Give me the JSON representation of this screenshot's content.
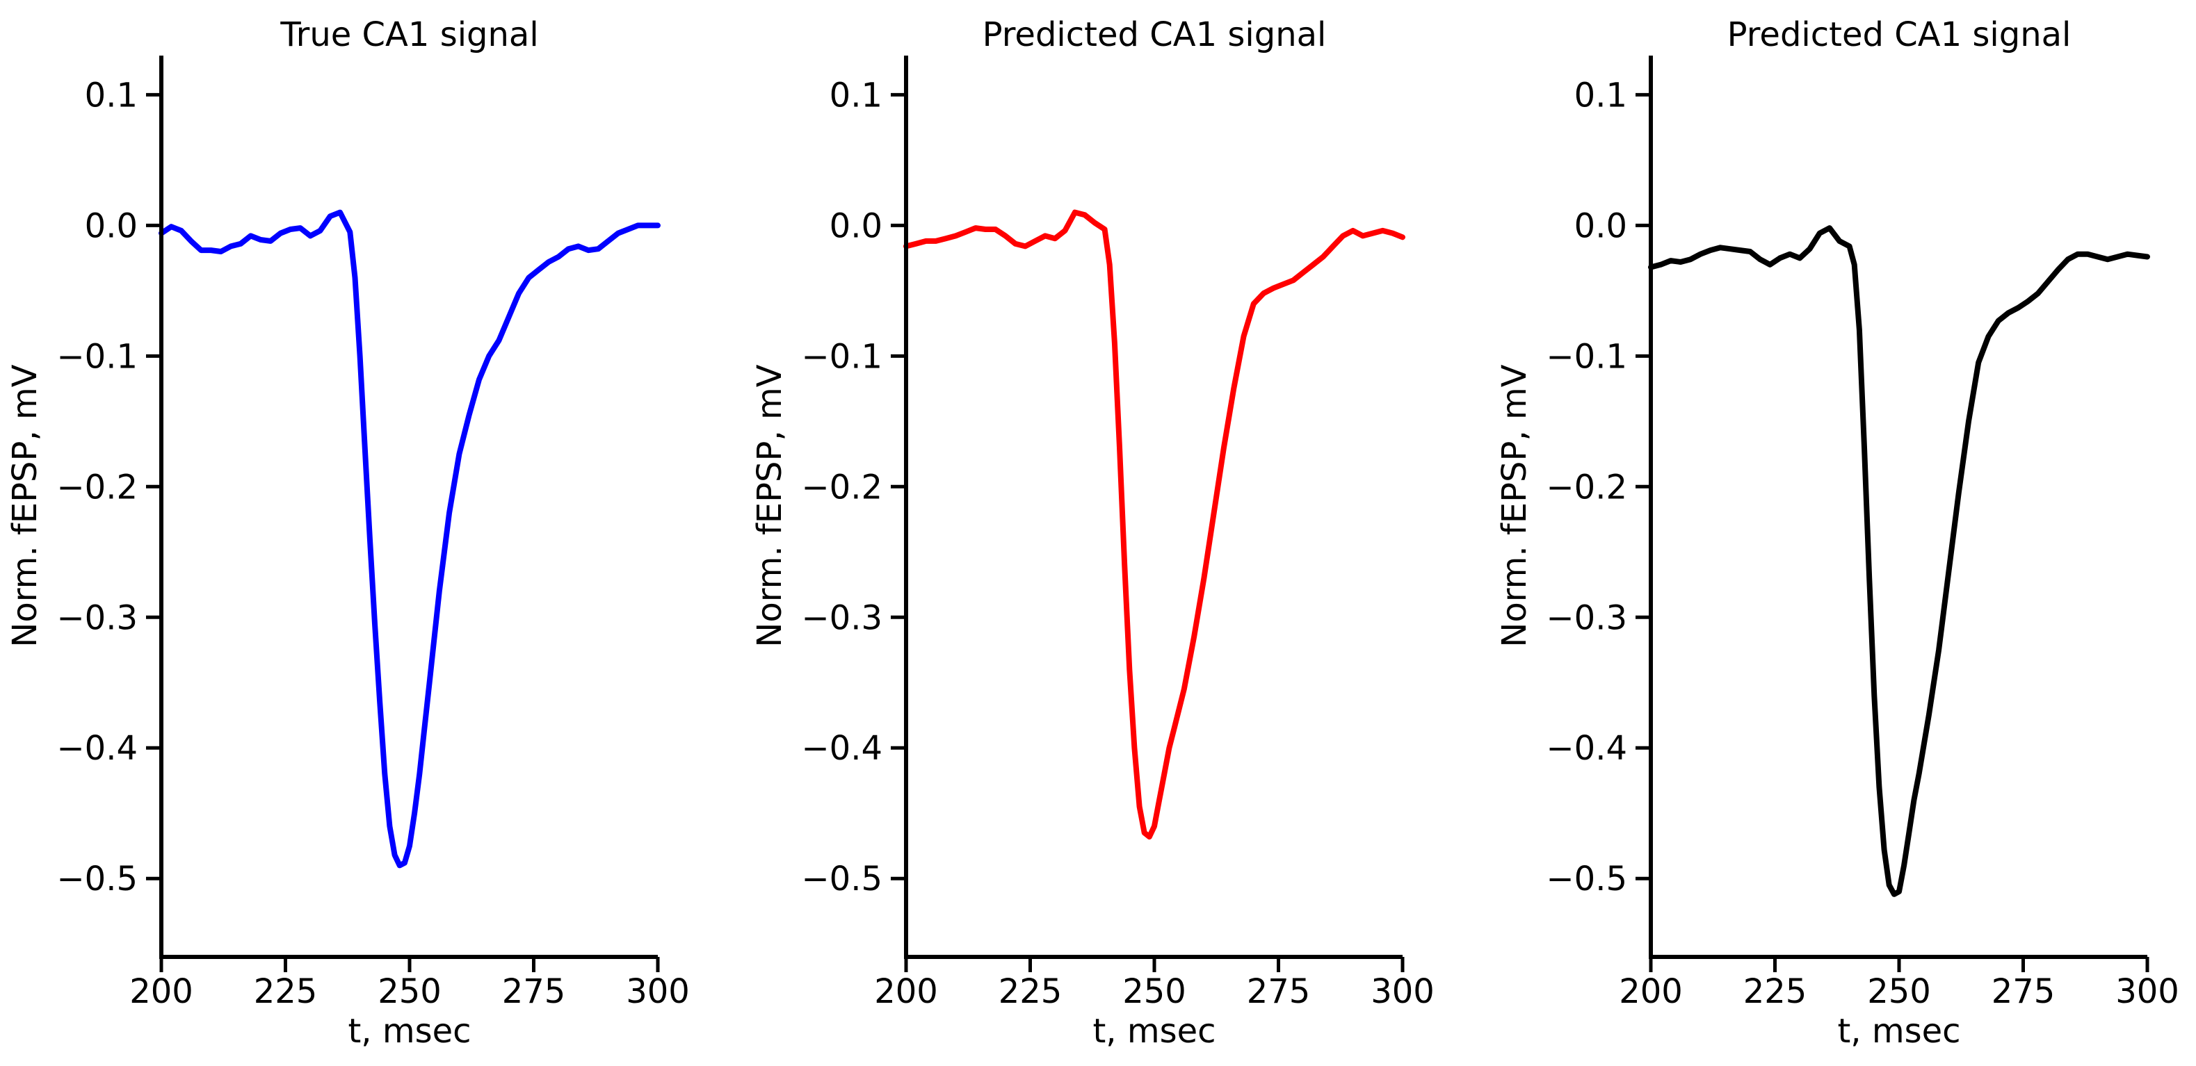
{
  "chart_data": [
    {
      "type": "line",
      "title": "True CA1 signal",
      "xlabel": "t, msec",
      "ylabel": "Norm. fEPSP, mV",
      "xlim": [
        200,
        300
      ],
      "ylim": [
        -0.56,
        0.13
      ],
      "xticks": [
        200,
        225,
        250,
        275,
        300
      ],
      "xtick_labels": [
        "200",
        "225",
        "250",
        "275",
        "300"
      ],
      "yticks": [
        0.1,
        0.0,
        -0.1,
        -0.2,
        -0.3,
        -0.4,
        -0.5
      ],
      "ytick_labels": [
        "0.1",
        "0.0",
        "−0.1",
        "−0.2",
        "−0.3",
        "−0.4",
        "−0.5"
      ],
      "grid": false,
      "series": [
        {
          "color": "#0000ff",
          "x": [
            200,
            202,
            204,
            206,
            208,
            210,
            212,
            214,
            216,
            218,
            220,
            222,
            224,
            226,
            228,
            230,
            232,
            234,
            236,
            238,
            239,
            240,
            241,
            242,
            243,
            244,
            245,
            246,
            247,
            248,
            249,
            250,
            251,
            252,
            253,
            254,
            255,
            256,
            258,
            260,
            262,
            264,
            266,
            268,
            270,
            272,
            274,
            276,
            278,
            280,
            282,
            284,
            286,
            288,
            290,
            292,
            294,
            296,
            298,
            300
          ],
          "y": [
            -0.006,
            -0.001,
            -0.004,
            -0.012,
            -0.019,
            -0.019,
            -0.02,
            -0.016,
            -0.014,
            -0.008,
            -0.011,
            -0.012,
            -0.006,
            -0.003,
            -0.002,
            -0.008,
            -0.004,
            0.007,
            0.01,
            -0.005,
            -0.04,
            -0.1,
            -0.17,
            -0.24,
            -0.305,
            -0.365,
            -0.42,
            -0.46,
            -0.482,
            -0.49,
            -0.488,
            -0.475,
            -0.45,
            -0.42,
            -0.385,
            -0.35,
            -0.315,
            -0.28,
            -0.22,
            -0.175,
            -0.145,
            -0.118,
            -0.1,
            -0.088,
            -0.07,
            -0.052,
            -0.04,
            -0.034,
            -0.028,
            -0.024,
            -0.018,
            -0.016,
            -0.019,
            -0.018,
            -0.012,
            -0.006,
            -0.003,
            0.0,
            0.0,
            0.0
          ]
        }
      ]
    },
    {
      "type": "line",
      "title": "Predicted CA1 signal",
      "xlabel": "t, msec",
      "ylabel": "Norm. fEPSP, mV",
      "xlim": [
        200,
        300
      ],
      "ylim": [
        -0.56,
        0.13
      ],
      "xticks": [
        200,
        225,
        250,
        275,
        300
      ],
      "xtick_labels": [
        "200",
        "225",
        "250",
        "275",
        "300"
      ],
      "yticks": [
        0.1,
        0.0,
        -0.1,
        -0.2,
        -0.3,
        -0.4,
        -0.5
      ],
      "ytick_labels": [
        "0.1",
        "0.0",
        "−0.1",
        "−0.2",
        "−0.3",
        "−0.4",
        "−0.5"
      ],
      "grid": false,
      "series": [
        {
          "color": "#ff0000",
          "x": [
            200,
            202,
            204,
            206,
            208,
            210,
            212,
            214,
            216,
            218,
            220,
            222,
            224,
            226,
            228,
            230,
            232,
            234,
            236,
            238,
            240,
            241,
            242,
            243,
            244,
            245,
            246,
            247,
            248,
            249,
            250,
            251,
            252,
            253,
            254,
            256,
            258,
            260,
            262,
            264,
            266,
            268,
            270,
            272,
            274,
            276,
            278,
            280,
            282,
            284,
            286,
            288,
            290,
            292,
            294,
            296,
            298,
            300
          ],
          "y": [
            -0.016,
            -0.014,
            -0.012,
            -0.012,
            -0.01,
            -0.008,
            -0.005,
            -0.002,
            -0.003,
            -0.003,
            -0.008,
            -0.014,
            -0.016,
            -0.012,
            -0.008,
            -0.01,
            -0.004,
            0.01,
            0.008,
            0.002,
            -0.003,
            -0.03,
            -0.09,
            -0.17,
            -0.26,
            -0.34,
            -0.4,
            -0.445,
            -0.465,
            -0.468,
            -0.46,
            -0.44,
            -0.42,
            -0.4,
            -0.385,
            -0.355,
            -0.315,
            -0.27,
            -0.22,
            -0.17,
            -0.125,
            -0.085,
            -0.06,
            -0.052,
            -0.048,
            -0.045,
            -0.042,
            -0.036,
            -0.03,
            -0.024,
            -0.016,
            -0.008,
            -0.004,
            -0.008,
            -0.006,
            -0.004,
            -0.006,
            -0.009
          ]
        }
      ]
    },
    {
      "type": "line",
      "title": "Predicted CA1 signal",
      "xlabel": "t, msec",
      "ylabel": "Norm. fEPSP, mV",
      "xlim": [
        200,
        300
      ],
      "ylim": [
        -0.56,
        0.13
      ],
      "xticks": [
        200,
        225,
        250,
        275,
        300
      ],
      "xtick_labels": [
        "200",
        "225",
        "250",
        "275",
        "300"
      ],
      "yticks": [
        0.1,
        0.0,
        -0.1,
        -0.2,
        -0.3,
        -0.4,
        -0.5
      ],
      "ytick_labels": [
        "0.1",
        "0.0",
        "−0.1",
        "−0.2",
        "−0.3",
        "−0.4",
        "−0.5"
      ],
      "grid": false,
      "series": [
        {
          "color": "#000000",
          "x": [
            200,
            202,
            204,
            206,
            208,
            210,
            212,
            214,
            216,
            218,
            220,
            222,
            224,
            226,
            228,
            230,
            232,
            234,
            236,
            238,
            240,
            241,
            242,
            243,
            244,
            245,
            246,
            247,
            248,
            249,
            250,
            251,
            252,
            253,
            254,
            256,
            258,
            260,
            262,
            264,
            266,
            268,
            270,
            272,
            274,
            276,
            278,
            280,
            282,
            284,
            286,
            288,
            290,
            292,
            294,
            296,
            298,
            300
          ],
          "y": [
            -0.032,
            -0.03,
            -0.027,
            -0.028,
            -0.026,
            -0.022,
            -0.019,
            -0.017,
            -0.018,
            -0.019,
            -0.02,
            -0.026,
            -0.03,
            -0.025,
            -0.022,
            -0.025,
            -0.018,
            -0.006,
            -0.002,
            -0.012,
            -0.016,
            -0.03,
            -0.08,
            -0.17,
            -0.27,
            -0.36,
            -0.43,
            -0.478,
            -0.505,
            -0.512,
            -0.51,
            -0.49,
            -0.465,
            -0.44,
            -0.42,
            -0.375,
            -0.325,
            -0.265,
            -0.205,
            -0.15,
            -0.105,
            -0.085,
            -0.073,
            -0.067,
            -0.063,
            -0.058,
            -0.052,
            -0.043,
            -0.034,
            -0.026,
            -0.022,
            -0.022,
            -0.024,
            -0.026,
            -0.024,
            -0.022,
            -0.023,
            -0.024
          ]
        }
      ]
    }
  ]
}
